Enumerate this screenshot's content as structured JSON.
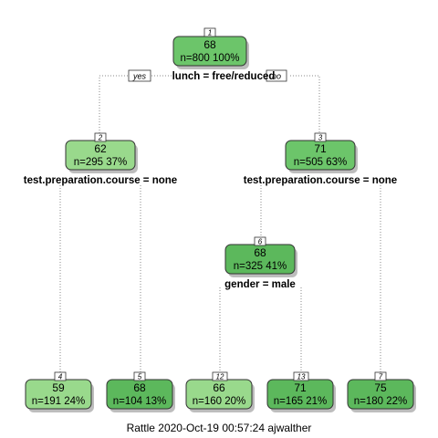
{
  "colors": {
    "light_green": "#99d98c",
    "mid_green": "#6cc56a",
    "dark_green": "#5cb85c",
    "connector": "#8a8a8a"
  },
  "branch_labels": {
    "yes": "yes",
    "no": "no"
  },
  "nodes": [
    {
      "id": "1",
      "value": "68",
      "count": "n=800  100%",
      "split": "lunch = free/reduced"
    },
    {
      "id": "2",
      "value": "62",
      "count": "n=295  37%",
      "split": "test.preparation.course = none"
    },
    {
      "id": "3",
      "value": "71",
      "count": "n=505  63%",
      "split": "test.preparation.course = none"
    },
    {
      "id": "6",
      "value": "68",
      "count": "n=325  41%",
      "split": "gender = male"
    },
    {
      "id": "4",
      "value": "59",
      "count": "n=191  24%",
      "split": ""
    },
    {
      "id": "5",
      "value": "68",
      "count": "n=104  13%",
      "split": ""
    },
    {
      "id": "12",
      "value": "66",
      "count": "n=160  20%",
      "split": ""
    },
    {
      "id": "13",
      "value": "71",
      "count": "n=165  21%",
      "split": ""
    },
    {
      "id": "7",
      "value": "75",
      "count": "n=180  22%",
      "split": ""
    }
  ],
  "caption": "Rattle 2020-Oct-19 00:57:24 ajwalther"
}
